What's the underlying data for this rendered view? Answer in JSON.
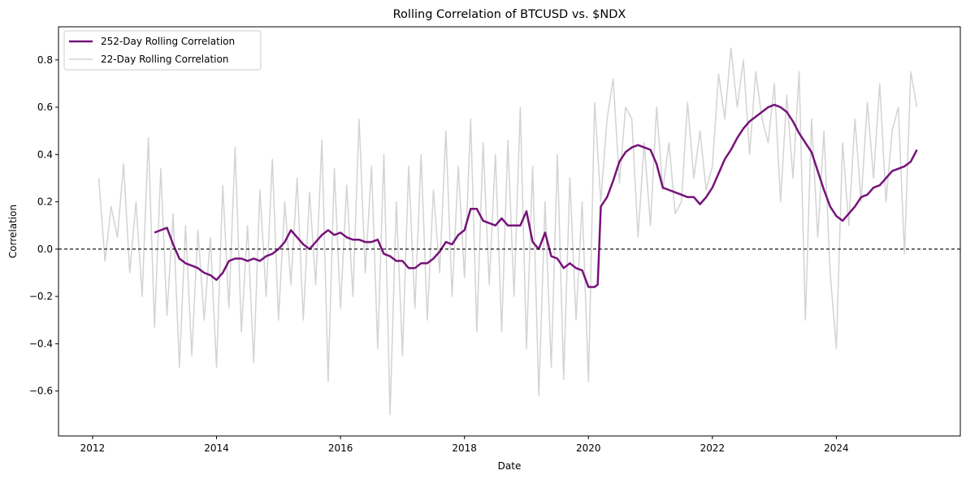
{
  "chart_data": {
    "type": "line",
    "title": "Rolling Correlation of BTCUSD vs. $NDX",
    "xlabel": "Date",
    "ylabel": "Correlation",
    "xlim": [
      2011.45,
      2026.0
    ],
    "ylim": [
      -0.79,
      0.94
    ],
    "x_ticks": [
      2012,
      2014,
      2016,
      2018,
      2020,
      2022,
      2024
    ],
    "x_tick_labels": [
      "2012",
      "2014",
      "2016",
      "2018",
      "2020",
      "2022",
      "2024"
    ],
    "y_ticks": [
      -0.6,
      -0.4,
      -0.2,
      0.0,
      0.2,
      0.4,
      0.6,
      0.8
    ],
    "y_tick_labels": [
      "−0.6",
      "−0.4",
      "−0.2",
      "0.0",
      "0.2",
      "0.4",
      "0.6",
      "0.8"
    ],
    "reference_line": {
      "y": 0.0,
      "style": "dashed",
      "color": "#000000"
    },
    "legend_position": "upper-left",
    "grid": false,
    "series": [
      {
        "name": "252-Day Rolling Correlation",
        "color": "#76137a",
        "x": [
          2013.0,
          2013.1,
          2013.2,
          2013.3,
          2013.4,
          2013.5,
          2013.6,
          2013.7,
          2013.8,
          2013.9,
          2014.0,
          2014.1,
          2014.2,
          2014.3,
          2014.4,
          2014.5,
          2014.6,
          2014.7,
          2014.8,
          2014.9,
          2015.0,
          2015.1,
          2015.2,
          2015.3,
          2015.4,
          2015.5,
          2015.6,
          2015.7,
          2015.8,
          2015.9,
          2016.0,
          2016.1,
          2016.2,
          2016.3,
          2016.4,
          2016.5,
          2016.6,
          2016.7,
          2016.8,
          2016.9,
          2017.0,
          2017.1,
          2017.2,
          2017.3,
          2017.4,
          2017.5,
          2017.6,
          2017.7,
          2017.8,
          2017.9,
          2018.0,
          2018.1,
          2018.2,
          2018.3,
          2018.4,
          2018.5,
          2018.6,
          2018.7,
          2018.8,
          2018.9,
          2019.0,
          2019.1,
          2019.2,
          2019.3,
          2019.4,
          2019.5,
          2019.6,
          2019.7,
          2019.8,
          2019.9,
          2020.0,
          2020.1,
          2020.15,
          2020.2,
          2020.3,
          2020.4,
          2020.5,
          2020.6,
          2020.7,
          2020.8,
          2020.9,
          2021.0,
          2021.1,
          2021.2,
          2021.3,
          2021.4,
          2021.5,
          2021.6,
          2021.7,
          2021.8,
          2021.9,
          2022.0,
          2022.1,
          2022.2,
          2022.3,
          2022.4,
          2022.5,
          2022.6,
          2022.7,
          2022.8,
          2022.9,
          2023.0,
          2023.1,
          2023.2,
          2023.3,
          2023.4,
          2023.5,
          2023.6,
          2023.7,
          2023.8,
          2023.9,
          2024.0,
          2024.1,
          2024.2,
          2024.3,
          2024.4,
          2024.5,
          2024.6,
          2024.7,
          2024.8,
          2024.9,
          2025.0,
          2025.1,
          2025.2,
          2025.3
        ],
        "y": [
          0.07,
          0.08,
          0.09,
          0.02,
          -0.04,
          -0.06,
          -0.07,
          -0.08,
          -0.1,
          -0.11,
          -0.13,
          -0.1,
          -0.05,
          -0.04,
          -0.04,
          -0.05,
          -0.04,
          -0.05,
          -0.03,
          -0.02,
          0.0,
          0.03,
          0.08,
          0.05,
          0.02,
          0.0,
          0.03,
          0.06,
          0.08,
          0.06,
          0.07,
          0.05,
          0.04,
          0.04,
          0.03,
          0.03,
          0.04,
          -0.02,
          -0.03,
          -0.05,
          -0.05,
          -0.08,
          -0.08,
          -0.06,
          -0.06,
          -0.04,
          -0.01,
          0.03,
          0.02,
          0.06,
          0.08,
          0.17,
          0.17,
          0.12,
          0.11,
          0.1,
          0.13,
          0.1,
          0.1,
          0.1,
          0.16,
          0.03,
          0.0,
          0.07,
          -0.03,
          -0.04,
          -0.08,
          -0.06,
          -0.08,
          -0.09,
          -0.16,
          -0.16,
          -0.15,
          0.18,
          0.22,
          0.29,
          0.37,
          0.41,
          0.43,
          0.44,
          0.43,
          0.42,
          0.36,
          0.26,
          0.25,
          0.24,
          0.23,
          0.22,
          0.22,
          0.19,
          0.22,
          0.26,
          0.32,
          0.38,
          0.42,
          0.47,
          0.51,
          0.54,
          0.56,
          0.58,
          0.6,
          0.61,
          0.6,
          0.58,
          0.54,
          0.49,
          0.45,
          0.41,
          0.33,
          0.25,
          0.18,
          0.14,
          0.12,
          0.15,
          0.18,
          0.22,
          0.23,
          0.26,
          0.27,
          0.3,
          0.33,
          0.34,
          0.35,
          0.37,
          0.42
        ]
      },
      {
        "name": "22-Day Rolling Correlation",
        "color": "#d3d3d3",
        "x": [
          2012.1,
          2012.2,
          2012.3,
          2012.4,
          2012.5,
          2012.6,
          2012.7,
          2012.8,
          2012.9,
          2013.0,
          2013.1,
          2013.2,
          2013.3,
          2013.4,
          2013.5,
          2013.6,
          2013.7,
          2013.8,
          2013.9,
          2014.0,
          2014.1,
          2014.2,
          2014.3,
          2014.4,
          2014.5,
          2014.6,
          2014.7,
          2014.8,
          2014.9,
          2015.0,
          2015.1,
          2015.2,
          2015.3,
          2015.4,
          2015.5,
          2015.6,
          2015.7,
          2015.8,
          2015.9,
          2016.0,
          2016.1,
          2016.2,
          2016.3,
          2016.4,
          2016.5,
          2016.6,
          2016.7,
          2016.8,
          2016.9,
          2017.0,
          2017.1,
          2017.2,
          2017.3,
          2017.4,
          2017.5,
          2017.6,
          2017.7,
          2017.8,
          2017.9,
          2018.0,
          2018.1,
          2018.2,
          2018.3,
          2018.4,
          2018.5,
          2018.6,
          2018.7,
          2018.8,
          2018.9,
          2019.0,
          2019.1,
          2019.2,
          2019.3,
          2019.4,
          2019.5,
          2019.6,
          2019.7,
          2019.8,
          2019.9,
          2020.0,
          2020.1,
          2020.2,
          2020.3,
          2020.4,
          2020.5,
          2020.6,
          2020.7,
          2020.8,
          2020.9,
          2021.0,
          2021.1,
          2021.2,
          2021.3,
          2021.4,
          2021.5,
          2021.6,
          2021.7,
          2021.8,
          2021.9,
          2022.0,
          2022.1,
          2022.2,
          2022.3,
          2022.4,
          2022.5,
          2022.6,
          2022.7,
          2022.8,
          2022.9,
          2023.0,
          2023.1,
          2023.2,
          2023.3,
          2023.4,
          2023.5,
          2023.6,
          2023.7,
          2023.8,
          2023.9,
          2024.0,
          2024.1,
          2024.2,
          2024.3,
          2024.4,
          2024.5,
          2024.6,
          2024.7,
          2024.8,
          2024.9,
          2025.0,
          2025.1,
          2025.2,
          2025.3
        ],
        "y": [
          0.3,
          -0.05,
          0.18,
          0.05,
          0.36,
          -0.1,
          0.2,
          -0.2,
          0.47,
          -0.33,
          0.34,
          -0.28,
          0.15,
          -0.5,
          0.1,
          -0.45,
          0.08,
          -0.3,
          0.05,
          -0.5,
          0.27,
          -0.25,
          0.43,
          -0.35,
          0.1,
          -0.48,
          0.25,
          -0.2,
          0.38,
          -0.3,
          0.2,
          -0.15,
          0.3,
          -0.3,
          0.24,
          -0.15,
          0.46,
          -0.56,
          0.34,
          -0.25,
          0.27,
          -0.2,
          0.55,
          -0.1,
          0.35,
          -0.42,
          0.4,
          -0.7,
          0.2,
          -0.45,
          0.35,
          -0.25,
          0.4,
          -0.3,
          0.25,
          -0.1,
          0.5,
          -0.2,
          0.35,
          -0.12,
          0.55,
          -0.35,
          0.45,
          -0.15,
          0.4,
          -0.35,
          0.46,
          -0.2,
          0.6,
          -0.42,
          0.35,
          -0.62,
          0.2,
          -0.5,
          0.4,
          -0.55,
          0.3,
          -0.3,
          0.2,
          -0.56,
          0.62,
          0.2,
          0.55,
          0.72,
          0.28,
          0.6,
          0.55,
          0.05,
          0.45,
          0.1,
          0.6,
          0.25,
          0.45,
          0.15,
          0.2,
          0.62,
          0.3,
          0.5,
          0.25,
          0.35,
          0.74,
          0.55,
          0.85,
          0.6,
          0.8,
          0.4,
          0.75,
          0.55,
          0.45,
          0.7,
          0.2,
          0.65,
          0.3,
          0.75,
          -0.3,
          0.55,
          0.05,
          0.5,
          -0.1,
          -0.42,
          0.45,
          0.1,
          0.55,
          0.2,
          0.62,
          0.3,
          0.7,
          0.2,
          0.5,
          0.6,
          -0.02,
          0.75,
          0.6
        ]
      }
    ]
  }
}
